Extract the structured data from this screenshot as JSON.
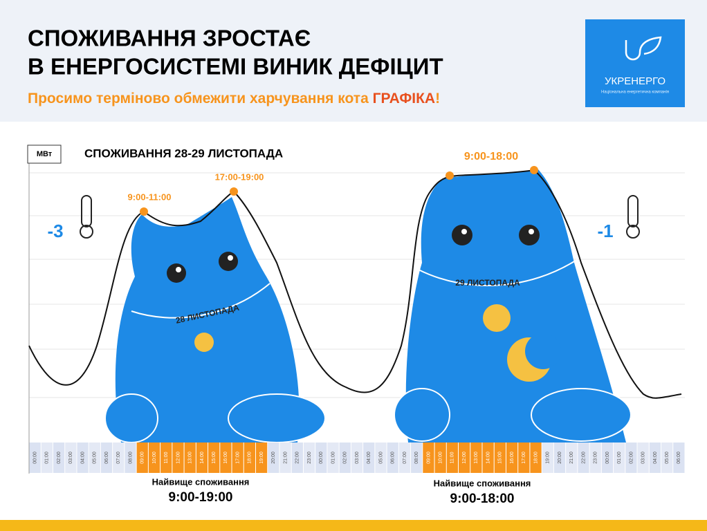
{
  "header": {
    "title_lines": [
      "СПОЖИВАННЯ ЗРОСТАЄ",
      "В ЕНЕРГОСИСТЕМІ ВИНИК ДЕФІЦИТ"
    ],
    "subtitle": {
      "text": "Просимо терміново обмежити харчування кота ",
      "highlight": "ГРАФІКА",
      "end": "!"
    },
    "logo": {
      "name": "УКРЕНЕРГО",
      "tagline": "Національна енергетична компанія"
    }
  },
  "chart": {
    "unit": "МВт",
    "title": "СПОЖИВАННЯ 28-29 ЛИСТОПАДА",
    "annotations": [
      "9:00-11:00",
      "17:00-19:00",
      "9:00-18:00"
    ],
    "temperatures": [
      "-3",
      "-1"
    ],
    "cat_labels": [
      "28 ЛИСТОПАДА",
      "29 ЛИСТОПАДА"
    ],
    "peak_color": "#f7941d",
    "timeline": [
      {
        "label": "00:00",
        "peak": false
      },
      {
        "label": "01:00",
        "peak": false
      },
      {
        "label": "02:00",
        "peak": false
      },
      {
        "label": "03:00",
        "peak": false
      },
      {
        "label": "04:00",
        "peak": false
      },
      {
        "label": "05:00",
        "peak": false
      },
      {
        "label": "06:00",
        "peak": false
      },
      {
        "label": "07:00",
        "peak": false
      },
      {
        "label": "08:00",
        "peak": false
      },
      {
        "label": "09:00",
        "peak": true
      },
      {
        "label": "10:00",
        "peak": true
      },
      {
        "label": "11:00",
        "peak": true
      },
      {
        "label": "12:00",
        "peak": true
      },
      {
        "label": "13:00",
        "peak": true
      },
      {
        "label": "14:00",
        "peak": true
      },
      {
        "label": "15:00",
        "peak": true
      },
      {
        "label": "16:00",
        "peak": true
      },
      {
        "label": "17:00",
        "peak": true
      },
      {
        "label": "18:00",
        "peak": true
      },
      {
        "label": "19:00",
        "peak": true
      },
      {
        "label": "20:00",
        "peak": false
      },
      {
        "label": "21:00",
        "peak": false
      },
      {
        "label": "22:00",
        "peak": false
      },
      {
        "label": "23:00",
        "peak": false
      },
      {
        "label": "00:00",
        "peak": false
      },
      {
        "label": "01:00",
        "peak": false
      },
      {
        "label": "02:00",
        "peak": false
      },
      {
        "label": "03:00",
        "peak": false
      },
      {
        "label": "04:00",
        "peak": false
      },
      {
        "label": "05:00",
        "peak": false
      },
      {
        "label": "06:00",
        "peak": false
      },
      {
        "label": "07:00",
        "peak": false
      },
      {
        "label": "08:00",
        "peak": false
      },
      {
        "label": "09:00",
        "peak": true
      },
      {
        "label": "10:00",
        "peak": true
      },
      {
        "label": "11:00",
        "peak": true
      },
      {
        "label": "12:00",
        "peak": true
      },
      {
        "label": "13:00",
        "peak": true
      },
      {
        "label": "14:00",
        "peak": true
      },
      {
        "label": "15:00",
        "peak": true
      },
      {
        "label": "16:00",
        "peak": true
      },
      {
        "label": "17:00",
        "peak": true
      },
      {
        "label": "18:00",
        "peak": true
      },
      {
        "label": "19:00",
        "peak": false
      },
      {
        "label": "20:00",
        "peak": false
      },
      {
        "label": "21:00",
        "peak": false
      },
      {
        "label": "22:00",
        "peak": false
      },
      {
        "label": "23:00",
        "peak": false
      },
      {
        "label": "00:00",
        "peak": false
      },
      {
        "label": "01:00",
        "peak": false
      },
      {
        "label": "02:00",
        "peak": false
      },
      {
        "label": "03:00",
        "peak": false
      },
      {
        "label": "04:00",
        "peak": false
      },
      {
        "label": "05:00",
        "peak": false
      },
      {
        "label": "06:00",
        "peak": false
      }
    ]
  },
  "footer": [
    {
      "caption": "Найвище споживання",
      "range": "9:00-19:00"
    },
    {
      "caption": "Найвище споживання",
      "range": "9:00-18:00"
    }
  ]
}
